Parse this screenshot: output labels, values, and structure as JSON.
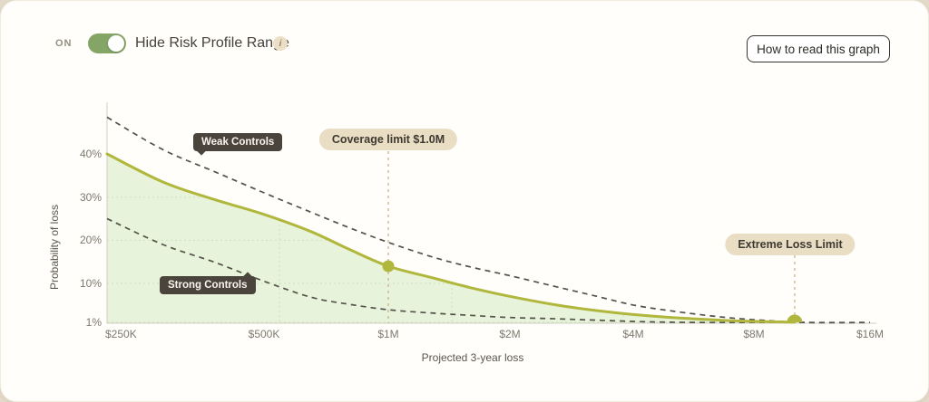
{
  "header": {
    "toggle_state_label": "ON",
    "toggle_label": "Hide Risk Profile Range",
    "info_icon_glyph": "i",
    "help_button_label": "How to read this graph"
  },
  "colors": {
    "toggle_on": "#84a566",
    "risk_line": "#b0b73c",
    "risk_fill": "#e7f3da",
    "dashed_line": "#54524b",
    "gridline": "#cde2ba",
    "axis_line": "#d2cec3",
    "annotation_line": "#c9ab85",
    "annotation_pill_bg": "#e9ddc4",
    "series_label_bg": "#4b443c"
  },
  "chart_data": {
    "type": "area",
    "x_axis": {
      "label": "Projected 3-year loss",
      "scale": "log",
      "tick_labels": [
        "$250K",
        "$500K",
        "$1M",
        "$2M",
        "$4M",
        "$8M",
        "$16M"
      ],
      "tick_values_musd": [
        0.25,
        0.5,
        1,
        2,
        4,
        8,
        16
      ]
    },
    "y_axis": {
      "label": "Probability of loss",
      "tick_labels": [
        "40%",
        "30%",
        "20%",
        "10%",
        "1%"
      ],
      "tick_values_pct": [
        40,
        30,
        20,
        10,
        1
      ]
    },
    "series": [
      {
        "id": "weak-controls",
        "name": "Weak Controls",
        "line_style": "dashed",
        "points": [
          [
            0.25,
            48.5
          ],
          [
            0.32,
            41
          ],
          [
            0.4,
            36
          ],
          [
            0.5,
            31
          ],
          [
            0.65,
            26.5
          ],
          [
            0.8,
            23
          ],
          [
            1.0,
            19.5
          ],
          [
            1.3,
            16
          ],
          [
            1.6,
            13.8
          ],
          [
            2.0,
            11.8
          ],
          [
            2.6,
            9.2
          ],
          [
            3.2,
            7.2
          ],
          [
            4.0,
            5.0
          ],
          [
            5.0,
            3.6
          ],
          [
            6.5,
            2.3
          ],
          [
            8.0,
            1.6
          ],
          [
            11,
            0.9
          ],
          [
            16,
            0.5
          ]
        ]
      },
      {
        "id": "risk-profile",
        "name": "",
        "line_style": "solid-filled",
        "points": [
          [
            0.25,
            40
          ],
          [
            0.32,
            33.5
          ],
          [
            0.4,
            29.5
          ],
          [
            0.5,
            26
          ],
          [
            0.65,
            22
          ],
          [
            0.8,
            18
          ],
          [
            1.0,
            14
          ],
          [
            1.3,
            11.2
          ],
          [
            1.6,
            9
          ],
          [
            2.0,
            7
          ],
          [
            2.6,
            5
          ],
          [
            3.2,
            3.8
          ],
          [
            4.0,
            2.8
          ],
          [
            5.0,
            2.1
          ],
          [
            6.5,
            1.5
          ],
          [
            8.0,
            1.2
          ],
          [
            10.2,
            1.0
          ]
        ]
      },
      {
        "id": "strong-controls",
        "name": "Strong Controls",
        "line_style": "dashed",
        "points": [
          [
            0.25,
            25
          ],
          [
            0.32,
            19
          ],
          [
            0.4,
            15
          ],
          [
            0.5,
            10.5
          ],
          [
            0.65,
            6.8
          ],
          [
            0.8,
            5.2
          ],
          [
            1.0,
            3.9
          ],
          [
            1.3,
            3.1
          ],
          [
            1.6,
            2.6
          ],
          [
            2.0,
            2.1
          ],
          [
            2.6,
            1.8
          ],
          [
            3.2,
            1.5
          ],
          [
            4.0,
            1.2
          ],
          [
            5.0,
            1.0
          ],
          [
            6.5,
            0.8
          ],
          [
            8.0,
            0.7
          ],
          [
            11,
            0.5
          ],
          [
            16,
            0.4
          ]
        ]
      }
    ],
    "annotations": [
      {
        "id": "coverage-limit",
        "label": "Coverage limit $1.0M",
        "x_musd": 1.0,
        "marker_pct": 14
      },
      {
        "id": "extreme-loss-limit",
        "label": "Extreme Loss Limit",
        "x_musd": 10.2,
        "marker_pct": 1
      }
    ]
  }
}
